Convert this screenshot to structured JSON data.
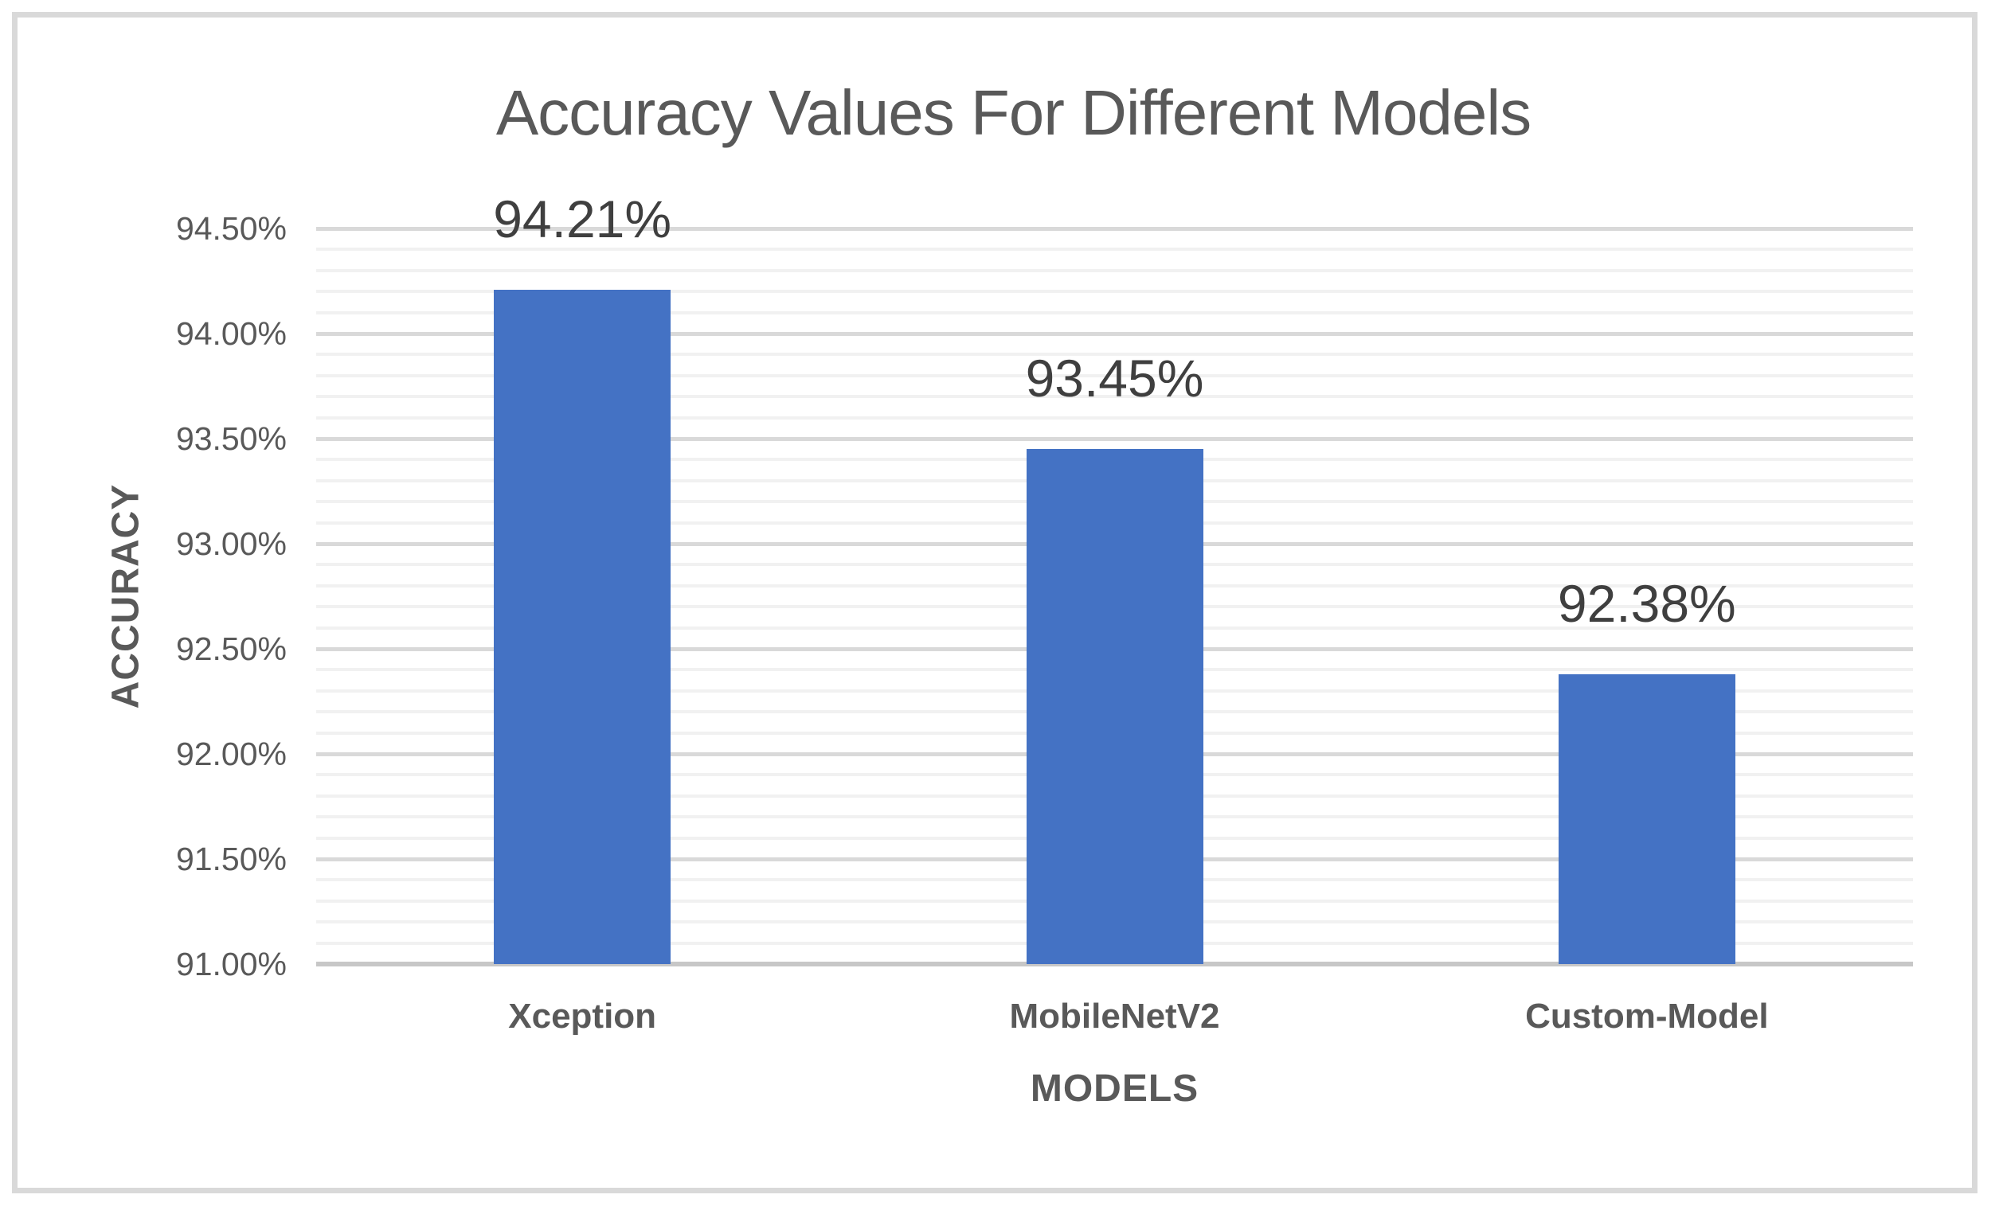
{
  "chart_data": {
    "type": "bar",
    "title": "Accuracy Values For Different Models",
    "xlabel": "MODELS",
    "ylabel": "ACCURACY",
    "categories": [
      "Xception",
      "MobileNetV2",
      "Custom-Model"
    ],
    "values": [
      94.21,
      93.45,
      92.38
    ],
    "data_labels": [
      "94.21%",
      "93.45%",
      "92.38%"
    ],
    "ylim": [
      91.0,
      94.5
    ],
    "y_major_unit": 0.5,
    "y_minor_unit": 0.1,
    "y_tick_labels": [
      "94.50%",
      "94.00%",
      "93.50%",
      "93.00%",
      "92.50%",
      "92.00%",
      "91.50%",
      "91.00%"
    ],
    "grid": "horizontal, major and minor, no vertical gridlines",
    "legend": "none",
    "bar_color": "#4472c4",
    "major_gridline_color": "#d9d9d9",
    "minor_gridline_color": "#f1f1f1",
    "axis_line_color": "#c7c7c7",
    "title_color": "#595959",
    "label_color": "#595959",
    "data_label_color": "#3f3f3f",
    "border_color": "#d9d9d9",
    "background_color": "#ffffff"
  }
}
